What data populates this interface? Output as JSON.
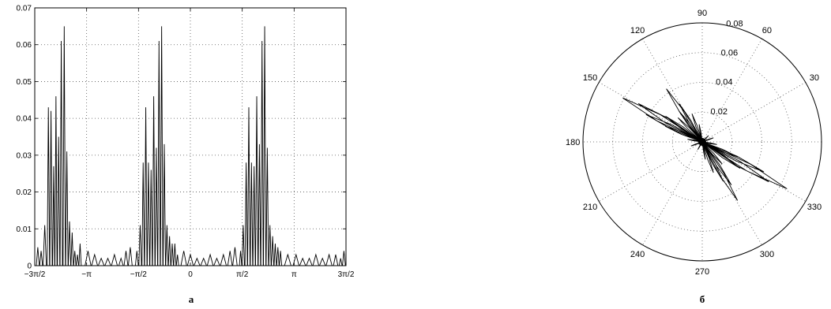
{
  "chart_data": [
    {
      "type": "line",
      "panel_label": "а",
      "xlim": [
        -4.712389,
        4.712389
      ],
      "ylim": [
        0,
        0.07
      ],
      "grid": true,
      "x_ticks": [
        {
          "value": -4.712389,
          "label": "−3π/2"
        },
        {
          "value": -3.141593,
          "label": "−π"
        },
        {
          "value": -1.570796,
          "label": "−π/2"
        },
        {
          "value": 0,
          "label": "0"
        },
        {
          "value": 1.570796,
          "label": "π/2"
        },
        {
          "value": 3.141593,
          "label": "π"
        },
        {
          "value": 4.712389,
          "label": "3π/2"
        }
      ],
      "y_ticks": [
        {
          "value": 0,
          "label": "0"
        },
        {
          "value": 0.01,
          "label": "0.01"
        },
        {
          "value": 0.02,
          "label": "0.02"
        },
        {
          "value": 0.03,
          "label": "0.03"
        },
        {
          "value": 0.04,
          "label": "0.04"
        },
        {
          "value": 0.05,
          "label": "0.05"
        },
        {
          "value": 0.06,
          "label": "0.06"
        },
        {
          "value": 0.07,
          "label": "0.07"
        }
      ],
      "series": [
        {
          "peaks": [
            [
              -4.62,
              0.005
            ],
            [
              -4.52,
              0.004
            ],
            [
              -4.41,
              0.011
            ],
            [
              -4.3,
              0.043
            ],
            [
              -4.22,
              0.042
            ],
            [
              -4.14,
              0.027
            ],
            [
              -4.07,
              0.046
            ],
            [
              -3.99,
              0.035
            ],
            [
              -3.91,
              0.061
            ],
            [
              -3.82,
              0.065
            ],
            [
              -3.74,
              0.031
            ],
            [
              -3.66,
              0.012
            ],
            [
              -3.58,
              0.009
            ],
            [
              -3.5,
              0.004
            ],
            [
              -3.42,
              0.003
            ],
            [
              -3.34,
              0.006
            ],
            [
              -3.1,
              0.004
            ],
            [
              -2.9,
              0.003
            ],
            [
              -2.7,
              0.002
            ],
            [
              -2.5,
              0.002
            ],
            [
              -2.3,
              0.003
            ],
            [
              -2.1,
              0.002
            ],
            [
              -1.95,
              0.004
            ],
            [
              -1.82,
              0.005
            ],
            [
              -1.62,
              0.004
            ],
            [
              -1.52,
              0.011
            ],
            [
              -1.43,
              0.028
            ],
            [
              -1.35,
              0.043
            ],
            [
              -1.27,
              0.028
            ],
            [
              -1.19,
              0.026
            ],
            [
              -1.11,
              0.046
            ],
            [
              -1.03,
              0.032
            ],
            [
              -0.95,
              0.061
            ],
            [
              -0.87,
              0.065
            ],
            [
              -0.79,
              0.033
            ],
            [
              -0.71,
              0.011
            ],
            [
              -0.63,
              0.008
            ],
            [
              -0.55,
              0.006
            ],
            [
              -0.47,
              0.006
            ],
            [
              -0.39,
              0.003
            ],
            [
              -0.2,
              0.004
            ],
            [
              0.0,
              0.003
            ],
            [
              0.2,
              0.002
            ],
            [
              0.4,
              0.002
            ],
            [
              0.6,
              0.003
            ],
            [
              0.8,
              0.002
            ],
            [
              1.0,
              0.003
            ],
            [
              1.2,
              0.004
            ],
            [
              1.35,
              0.005
            ],
            [
              1.52,
              0.004
            ],
            [
              1.6,
              0.011
            ],
            [
              1.69,
              0.028
            ],
            [
              1.77,
              0.043
            ],
            [
              1.85,
              0.028
            ],
            [
              1.93,
              0.027
            ],
            [
              2.01,
              0.046
            ],
            [
              2.09,
              0.033
            ],
            [
              2.17,
              0.061
            ],
            [
              2.25,
              0.065
            ],
            [
              2.33,
              0.032
            ],
            [
              2.41,
              0.011
            ],
            [
              2.49,
              0.008
            ],
            [
              2.57,
              0.006
            ],
            [
              2.65,
              0.005
            ],
            [
              2.73,
              0.004
            ],
            [
              2.95,
              0.003
            ],
            [
              3.2,
              0.003
            ],
            [
              3.4,
              0.002
            ],
            [
              3.6,
              0.002
            ],
            [
              3.8,
              0.003
            ],
            [
              4.0,
              0.002
            ],
            [
              4.2,
              0.003
            ],
            [
              4.4,
              0.003
            ],
            [
              4.55,
              0.002
            ],
            [
              4.65,
              0.004
            ]
          ]
        }
      ]
    },
    {
      "type": "polar",
      "panel_label": "б",
      "rlim": [
        0,
        0.08
      ],
      "grid": true,
      "r_ticks": [
        {
          "value": 0.02,
          "label": "0.02"
        },
        {
          "value": 0.04,
          "label": "0.04"
        },
        {
          "value": 0.06,
          "label": "0.06"
        },
        {
          "value": 0.08,
          "label": "0.08"
        }
      ],
      "theta_ticks": [
        {
          "value": 0,
          "label": ""
        },
        {
          "value": 30,
          "label": "30"
        },
        {
          "value": 60,
          "label": "60"
        },
        {
          "value": 90,
          "label": "90"
        },
        {
          "value": 120,
          "label": "120"
        },
        {
          "value": 150,
          "label": "150"
        },
        {
          "value": 180,
          "label": "180"
        },
        {
          "value": 210,
          "label": "210"
        },
        {
          "value": 240,
          "label": "240"
        },
        {
          "value": 270,
          "label": "270"
        },
        {
          "value": 300,
          "label": "300"
        },
        {
          "value": 330,
          "label": "330"
        }
      ],
      "lobes": [
        {
          "angle_deg": 151,
          "r": 0.061
        },
        {
          "angle_deg": 149,
          "r": 0.05
        },
        {
          "angle_deg": 154,
          "r": 0.042
        },
        {
          "angle_deg": 145,
          "r": 0.03
        },
        {
          "angle_deg": 157,
          "r": 0.027
        },
        {
          "angle_deg": 124,
          "r": 0.043
        },
        {
          "angle_deg": 121,
          "r": 0.03
        },
        {
          "angle_deg": 127,
          "r": 0.026
        },
        {
          "angle_deg": 110,
          "r": 0.02
        },
        {
          "angle_deg": 135,
          "r": 0.023
        },
        {
          "angle_deg": 100,
          "r": 0.012
        },
        {
          "angle_deg": 331,
          "r": 0.065
        },
        {
          "angle_deg": 329,
          "r": 0.052
        },
        {
          "angle_deg": 334,
          "r": 0.046
        },
        {
          "angle_deg": 325,
          "r": 0.031
        },
        {
          "angle_deg": 337,
          "r": 0.026
        },
        {
          "angle_deg": 301,
          "r": 0.046
        },
        {
          "angle_deg": 304,
          "r": 0.035
        },
        {
          "angle_deg": 298,
          "r": 0.03
        },
        {
          "angle_deg": 290,
          "r": 0.022
        },
        {
          "angle_deg": 312,
          "r": 0.02
        },
        {
          "angle_deg": 280,
          "r": 0.012
        },
        {
          "angle_deg": 170,
          "r": 0.01
        },
        {
          "angle_deg": 200,
          "r": 0.008
        },
        {
          "angle_deg": 240,
          "r": 0.006
        },
        {
          "angle_deg": 20,
          "r": 0.008
        },
        {
          "angle_deg": 45,
          "r": 0.006
        },
        {
          "angle_deg": 350,
          "r": 0.01
        }
      ]
    }
  ]
}
